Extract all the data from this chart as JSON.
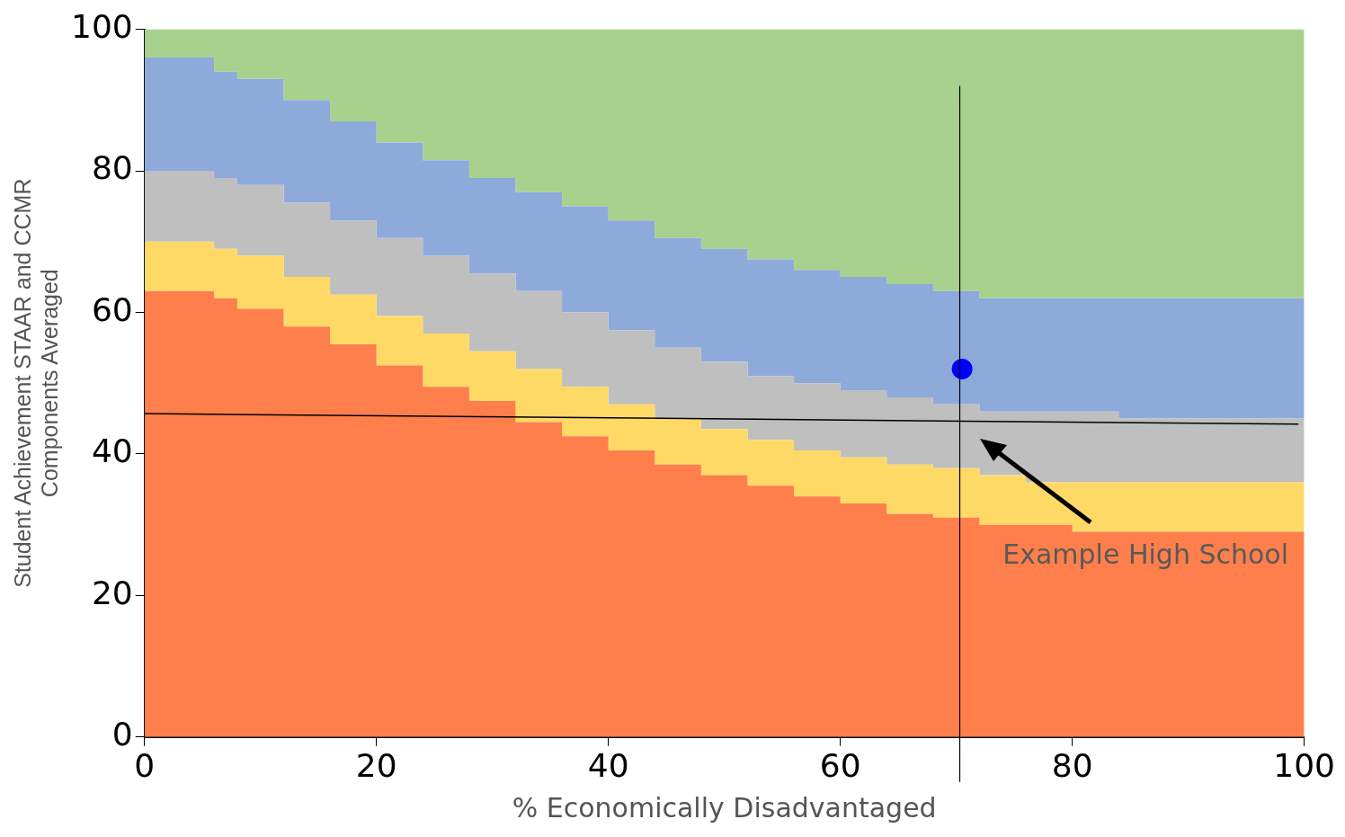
{
  "chart_data": {
    "type": "area",
    "xlabel": "% Economically Disadvantaged",
    "ylabel": "Student Achievement STAAR and CCMR\nComponents Averaged",
    "x": [
      0,
      6,
      8,
      12,
      16,
      20,
      24,
      28,
      32,
      36,
      40,
      44,
      48,
      52,
      56,
      60,
      64,
      68,
      72,
      76,
      80,
      84,
      88,
      92,
      96,
      100
    ],
    "xlim": [
      0,
      100
    ],
    "xticks": [
      0,
      20,
      40,
      60,
      80,
      100
    ],
    "ylim": [
      0,
      100
    ],
    "yticks": [
      0,
      20,
      40,
      60,
      80,
      100
    ],
    "legend": false,
    "series": [
      {
        "color": "#fe7f4b",
        "values": [
          63,
          62,
          60.5,
          58,
          55.5,
          52.5,
          49.5,
          47.5,
          44.5,
          42.5,
          40.5,
          38.5,
          37,
          35.5,
          34,
          33,
          31.5,
          31,
          30,
          30,
          29,
          29,
          29,
          29,
          29,
          29
        ]
      },
      {
        "color": "#ffd966",
        "values": [
          70,
          69,
          68,
          65,
          62.5,
          59.5,
          57,
          54.5,
          52,
          49.5,
          47,
          45,
          43.5,
          42,
          40.5,
          39.5,
          38.5,
          38,
          37,
          36,
          36,
          36,
          36,
          36,
          36,
          36
        ]
      },
      {
        "color": "#bfbfbf",
        "values": [
          80,
          79,
          78,
          75.5,
          73,
          70.5,
          68,
          65.5,
          63,
          60,
          57.5,
          55,
          53,
          51,
          50,
          49,
          48,
          47,
          46,
          46,
          46,
          45,
          45,
          45,
          45,
          45
        ]
      },
      {
        "color": "#8eaadb",
        "values": [
          96,
          94,
          93,
          90,
          87,
          84,
          81.5,
          79,
          77,
          75,
          73,
          70.5,
          69,
          67.5,
          66,
          65,
          64,
          63,
          62,
          62,
          62,
          62,
          62,
          62,
          62,
          62
        ]
      },
      {
        "color": "#a9d18e",
        "values": [
          100,
          100,
          100,
          100,
          100,
          100,
          100,
          100,
          100,
          100,
          100,
          100,
          100,
          100,
          100,
          100,
          100,
          100,
          100,
          100,
          100,
          100,
          100,
          100,
          100,
          100
        ]
      },
      {
        "type": "line",
        "color": "#000000",
        "x": [
          0,
          99.5
        ],
        "values": [
          45.7,
          44.2
        ]
      },
      {
        "type": "scatter",
        "color": "#0000ff",
        "marker": "circle",
        "x": [
          70.5
        ],
        "values": [
          52
        ]
      }
    ],
    "ref_lines": [
      {
        "axis": "x",
        "value": 70.3,
        "color": "#000000"
      }
    ],
    "annotations": [
      "Example High School"
    ]
  }
}
